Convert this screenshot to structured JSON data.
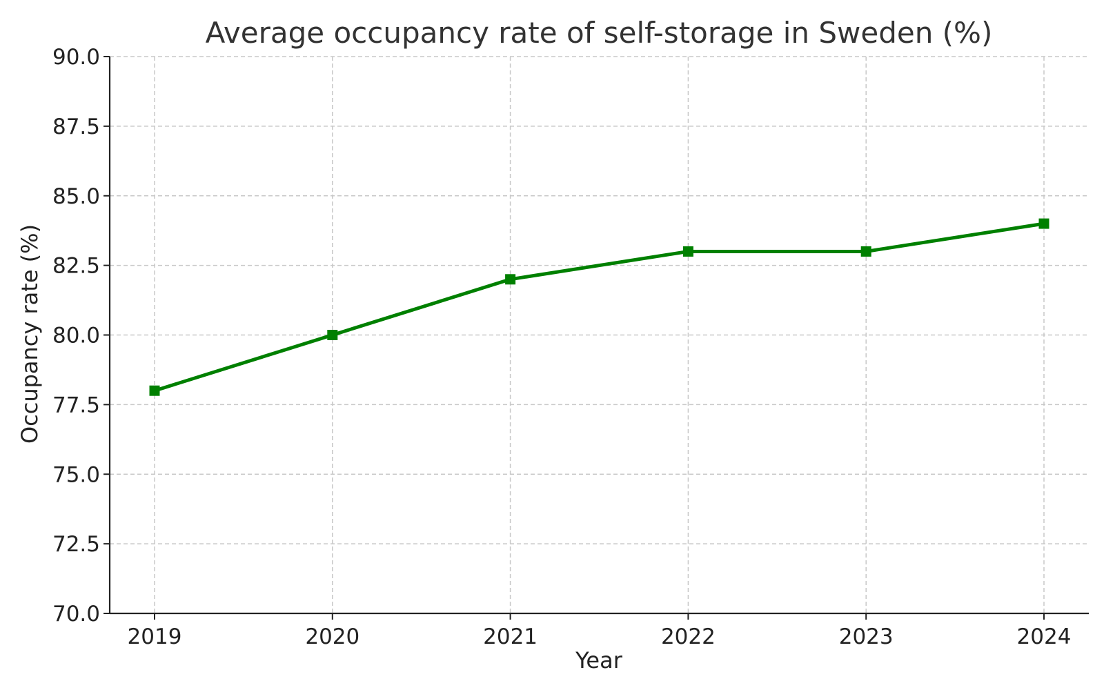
{
  "chart_data": {
    "type": "line",
    "title": "Average occupancy rate of self-storage in Sweden (%)",
    "xlabel": "Year",
    "ylabel": "Occupancy rate (%)",
    "categories": [
      "2019",
      "2020",
      "2021",
      "2022",
      "2023",
      "2024"
    ],
    "series": [
      {
        "values": [
          78.0,
          80.0,
          82.0,
          83.0,
          83.0,
          84.0
        ],
        "color": "#008000",
        "marker": "square"
      }
    ],
    "ylim": [
      70.0,
      90.0
    ],
    "yticks": [
      "70.0",
      "72.5",
      "75.0",
      "77.5",
      "80.0",
      "82.5",
      "85.0",
      "87.5",
      "90.0"
    ],
    "grid": true,
    "legend": "none"
  }
}
